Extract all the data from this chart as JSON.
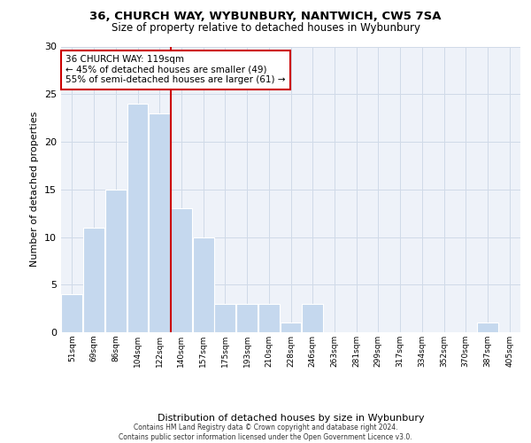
{
  "title1": "36, CHURCH WAY, WYBUNBURY, NANTWICH, CW5 7SA",
  "title2": "Size of property relative to detached houses in Wybunbury",
  "xlabel": "Distribution of detached houses by size in Wybunbury",
  "ylabel": "Number of detached properties",
  "bar_labels": [
    "51sqm",
    "69sqm",
    "86sqm",
    "104sqm",
    "122sqm",
    "140sqm",
    "157sqm",
    "175sqm",
    "193sqm",
    "210sqm",
    "228sqm",
    "246sqm",
    "263sqm",
    "281sqm",
    "299sqm",
    "317sqm",
    "334sqm",
    "352sqm",
    "370sqm",
    "387sqm",
    "405sqm"
  ],
  "bar_values": [
    4,
    11,
    15,
    24,
    23,
    13,
    10,
    3,
    3,
    3,
    1,
    3,
    0,
    0,
    0,
    0,
    0,
    0,
    0,
    1,
    0
  ],
  "bar_color": "#c5d8ee",
  "bar_edgecolor": "#ffffff",
  "grid_color": "#d0dae8",
  "bg_color": "#eef2f9",
  "vline_color": "#cc0000",
  "annotation_text": "36 CHURCH WAY: 119sqm\n← 45% of detached houses are smaller (49)\n55% of semi-detached houses are larger (61) →",
  "annotation_box_color": "#cc0000",
  "ylim": [
    0,
    30
  ],
  "yticks": [
    0,
    5,
    10,
    15,
    20,
    25,
    30
  ],
  "footer1": "Contains HM Land Registry data © Crown copyright and database right 2024.",
  "footer2": "Contains public sector information licensed under the Open Government Licence v3.0."
}
